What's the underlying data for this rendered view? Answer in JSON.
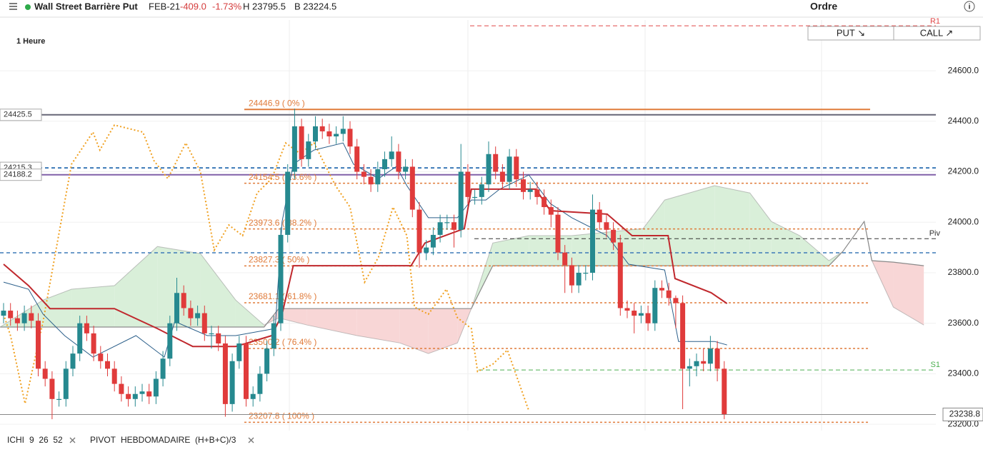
{
  "header": {
    "instrument": "Wall Street Barrière Put",
    "expiry": "FEB-21",
    "change": "-409.0",
    "change_pct": "-1.73%",
    "high": "H 23795.5",
    "low": "B 23224.5"
  },
  "order_panel": {
    "title": "Ordre",
    "put": "PUT ↘",
    "call": "CALL ↗"
  },
  "indicators": [
    {
      "name": "ICHI",
      "params": "9  26  52"
    },
    {
      "name": "PIVOT",
      "params": "HEBDOMADAIRE  (H+B+C)/3"
    }
  ],
  "chart_data": {
    "type": "candlestick",
    "timeframe": "1 Heure",
    "up_color": "#26898f",
    "down_color": "#e03b3b",
    "grid": true,
    "ylim": [
      23175,
      24801
    ],
    "yticks": [
      {
        "value": 23200,
        "label": "23200.0"
      },
      {
        "value": 23400,
        "label": "23400.0"
      },
      {
        "value": 23600,
        "label": "23600.0"
      },
      {
        "value": 23800,
        "label": "23800.0"
      },
      {
        "value": 24000,
        "label": "24000.0"
      },
      {
        "value": 24200,
        "label": "24200.0"
      },
      {
        "value": 24400,
        "label": "24400.0"
      },
      {
        "value": 24600,
        "label": "24600.0"
      }
    ],
    "open": [
      23630,
      23650,
      23620,
      23600,
      23640,
      23610,
      23420,
      23380,
      23300,
      23300,
      23420,
      23480,
      23600,
      23560,
      23480,
      23450,
      23420,
      23360,
      23320,
      23300,
      23320,
      23330,
      23310,
      23380,
      23460,
      23600,
      23720,
      23660,
      23620,
      23640,
      23560,
      23560,
      23520,
      23280,
      23450,
      23520,
      23300,
      23320,
      23400,
      23500,
      23600,
      23950,
      24200,
      24380,
      24250,
      24320,
      24380,
      24360,
      24340,
      24350,
      24370,
      24300,
      24200,
      24180,
      24150,
      24210,
      24250,
      24280,
      24200,
      24220,
      24050,
      23880,
      23900,
      23950,
      24000,
      24000,
      23970,
      24200,
      24100,
      24100,
      24150,
      24270,
      24200,
      24160,
      24260,
      24170,
      24120,
      24130,
      24100,
      24060,
      24030,
      23880,
      23830,
      23750,
      23800,
      23800,
      24050,
      24000,
      23970,
      23920,
      23660,
      23650,
      23630,
      23640,
      23600,
      23740,
      23730,
      23700,
      23680,
      23420,
      23430,
      23450,
      23440,
      23500,
      23420
    ],
    "high": [
      23680,
      23680,
      23650,
      23670,
      23670,
      23640,
      23450,
      23410,
      23330,
      23450,
      23510,
      23630,
      23630,
      23590,
      23510,
      23480,
      23450,
      23390,
      23350,
      23350,
      23360,
      23360,
      23410,
      23490,
      23630,
      23780,
      23750,
      23690,
      23670,
      23670,
      23590,
      23590,
      23550,
      23480,
      23550,
      23550,
      23350,
      23430,
      23530,
      23630,
      23980,
      24230,
      24450,
      24410,
      24350,
      24420,
      24410,
      24390,
      24380,
      24420,
      24400,
      24330,
      24230,
      24210,
      24240,
      24280,
      24340,
      24310,
      24250,
      24250,
      24080,
      23930,
      23980,
      24030,
      24030,
      24030,
      24310,
      24230,
      24130,
      24180,
      24320,
      24300,
      24230,
      24290,
      24290,
      24200,
      24160,
      24160,
      24130,
      24090,
      24060,
      23910,
      23860,
      23830,
      23830,
      24110,
      24080,
      24030,
      24000,
      23950,
      23690,
      23680,
      23670,
      23670,
      23770,
      23770,
      23760,
      23710,
      23710,
      23460,
      23480,
      23500,
      23550,
      23530,
      23450
    ],
    "low": [
      23600,
      23590,
      23570,
      23570,
      23580,
      23390,
      23350,
      23220,
      23270,
      23270,
      23390,
      23450,
      23530,
      23450,
      23420,
      23390,
      23330,
      23290,
      23270,
      23270,
      23290,
      23280,
      23280,
      23350,
      23430,
      23570,
      23630,
      23590,
      23590,
      23530,
      23500,
      23490,
      23230,
      23250,
      23420,
      23270,
      23270,
      23290,
      23370,
      23470,
      23570,
      23920,
      24170,
      24220,
      24220,
      24290,
      24330,
      24310,
      24310,
      24320,
      24270,
      24170,
      24150,
      24120,
      24120,
      24180,
      24220,
      24170,
      24170,
      24020,
      23820,
      23850,
      23870,
      23920,
      23970,
      23900,
      23940,
      24070,
      24070,
      24070,
      24120,
      24170,
      24130,
      24130,
      24140,
      24090,
      24090,
      24070,
      24030,
      23980,
      23850,
      23720,
      23720,
      23720,
      23770,
      23770,
      23970,
      23940,
      23890,
      23630,
      23620,
      23560,
      23600,
      23570,
      23570,
      23700,
      23670,
      23580,
      23260,
      23350,
      23390,
      23410,
      23410,
      23370,
      23220
    ],
    "close": [
      23650,
      23620,
      23600,
      23640,
      23610,
      23420,
      23380,
      23300,
      23300,
      23420,
      23480,
      23600,
      23560,
      23480,
      23450,
      23420,
      23360,
      23320,
      23300,
      23320,
      23330,
      23310,
      23380,
      23460,
      23600,
      23720,
      23660,
      23620,
      23640,
      23560,
      23560,
      23520,
      23280,
      23450,
      23520,
      23300,
      23320,
      23400,
      23500,
      23600,
      23950,
      24200,
      24380,
      24250,
      24320,
      24380,
      24360,
      24340,
      24350,
      24370,
      24300,
      24200,
      24180,
      24150,
      24210,
      24250,
      24280,
      24200,
      24220,
      24050,
      23880,
      23900,
      23950,
      24000,
      24000,
      23970,
      24200,
      24100,
      24100,
      24150,
      24270,
      24200,
      24160,
      24260,
      24170,
      24120,
      24130,
      24100,
      24060,
      24030,
      23880,
      23830,
      23750,
      23800,
      23800,
      24050,
      24000,
      23970,
      23920,
      23660,
      23650,
      23630,
      23640,
      23600,
      23740,
      23730,
      23700,
      23680,
      23420,
      23430,
      23450,
      23440,
      23500,
      23420,
      23240
    ],
    "fibonacci": [
      {
        "value": 24446.9,
        "label": "24446.9 ( 0% )"
      },
      {
        "value": 24154.5,
        "label": "24154.5 ( 23.6% )"
      },
      {
        "value": 23973.6,
        "label": "23973.6 ( 38.2% )"
      },
      {
        "value": 23827.3,
        "label": "23827.3 ( 50% )"
      },
      {
        "value": 23681.1,
        "label": "23681.1 ( 61.8% )"
      },
      {
        "value": 23500.2,
        "label": "23500.2 ( 76.4% )"
      },
      {
        "value": 23207.8,
        "label": "23207.8 ( 100% )"
      }
    ],
    "fib_color": "#e07b3a",
    "pivots": [
      {
        "name": "R1",
        "value": 24778,
        "color": "#e04848"
      },
      {
        "name": "Piv",
        "value": 23935,
        "color": "#333333"
      },
      {
        "name": "S1",
        "value": 23415,
        "color": "#4caf50"
      }
    ],
    "price_lines": [
      {
        "value": 24425.5,
        "label": "24425.5",
        "color": "#666677"
      },
      {
        "value": 24215.3,
        "label": "24215.3",
        "color": "#3d7ab8"
      },
      {
        "value": 24188.2,
        "label": "24188.2",
        "color": "#8060a8"
      },
      {
        "value": 23879,
        "color": "#3d7ab8"
      }
    ],
    "last_price": {
      "value": 23238.8,
      "label": "23238.8"
    },
    "ichimoku": {
      "kijun": {
        "color": "#c0282d",
        "x": [
          0,
          3.6,
          6.7,
          16,
          22.2,
          27.3,
          33.5,
          38.7,
          40.2,
          41.8,
          58.8,
          60.8,
          66.5,
          67.5,
          76.8,
          78.9,
          87.1,
          90.7,
          95.9,
          96.9,
          102.1,
          104.4
        ],
        "values": [
          23834,
          23749,
          23658,
          23658,
          23579,
          23508,
          23508,
          23551,
          23636,
          23828,
          23828,
          23918,
          23975,
          24131,
          24131,
          24046,
          24032,
          23947,
          23947,
          23777,
          23721,
          23678
        ]
      },
      "tenkan": {
        "color": "#2b5f8a",
        "x": [
          0,
          3.6,
          5.7,
          8.8,
          12.9,
          19.1,
          23.2,
          24.7,
          29.4,
          33.5,
          39.2,
          40.2,
          41.8,
          44.8,
          49,
          50.5,
          54.1,
          56.7,
          58.2,
          61.3,
          65.5,
          67.5,
          69.6,
          71.6,
          75.8,
          78.9,
          82,
          87.1,
          90.2,
          95.4,
          97.4,
          102.6,
          104.4
        ],
        "values": [
          23763,
          23735,
          23636,
          23551,
          23466,
          23551,
          23466,
          23607,
          23551,
          23551,
          23579,
          24003,
          24230,
          24286,
          24314,
          24230,
          24173,
          24221,
          24145,
          24018,
          24018,
          24088,
          24088,
          24131,
          24187,
          24074,
          24018,
          23947,
          23834,
          23811,
          23528,
          23528,
          23514
        ]
      },
      "chikou": {
        "color": "#f0a020",
        "x": [
          0,
          1,
          3.1,
          5.7,
          9.8,
          12.9,
          13.9,
          16,
          20.1,
          21.7,
          23.7,
          26.3,
          28.4,
          30.4,
          32.5,
          34.5,
          36.6,
          38.7,
          40.7,
          42.8,
          44.8,
          47.9,
          50,
          52.1,
          54.1,
          56.2,
          58.2,
          59.3,
          61.3,
          63.9,
          65.5,
          67.5,
          68.4,
          70.6,
          72.7,
          75.8
        ],
        "values": [
          23636,
          23551,
          23282,
          23607,
          24230,
          24357,
          24286,
          24385,
          24357,
          24244,
          24173,
          24314,
          24201,
          23890,
          23989,
          23947,
          24116,
          24173,
          24314,
          24272,
          24314,
          24145,
          24060,
          23763,
          23862,
          24060,
          23947,
          23664,
          23636,
          23735,
          23622,
          23579,
          23409,
          23438,
          23494,
          23253
        ]
      },
      "cloud": {
        "up_color": "#d9efd9",
        "down_color": "#f8d6d6",
        "line_color": "#8a8a8a",
        "x": [
          -0.5,
          5.7,
          9.8,
          16,
          22.2,
          28.4,
          33.5,
          37.6,
          39.7,
          43.8,
          51,
          57.2,
          61.3,
          65.5,
          67.5,
          70.6,
          75.8,
          82,
          92.3,
          95.4,
          102.6,
          107.7,
          110.8,
          114.9,
          119.1,
          121.1,
          124.2,
          125.3,
          128.4,
          132.8
        ],
        "span_a": [
          23585,
          23692,
          23735,
          23749,
          23904,
          23876,
          23692,
          23593,
          23621,
          23593,
          23551,
          23522,
          23480,
          23522,
          23658,
          23918,
          23947,
          23947,
          23975,
          24088,
          24145,
          24116,
          24003,
          23947,
          23848,
          23884,
          24003,
          23848,
          23664,
          23593
        ],
        "span_b": [
          23585,
          23585,
          23585,
          23585,
          23585,
          23585,
          23585,
          23585,
          23658,
          23658,
          23658,
          23658,
          23658,
          23658,
          23658,
          23828,
          23828,
          23828,
          23828,
          23828,
          23828,
          23828,
          23828,
          23828,
          23828,
          23884,
          24003,
          23848,
          23842,
          23828
        ]
      }
    }
  }
}
